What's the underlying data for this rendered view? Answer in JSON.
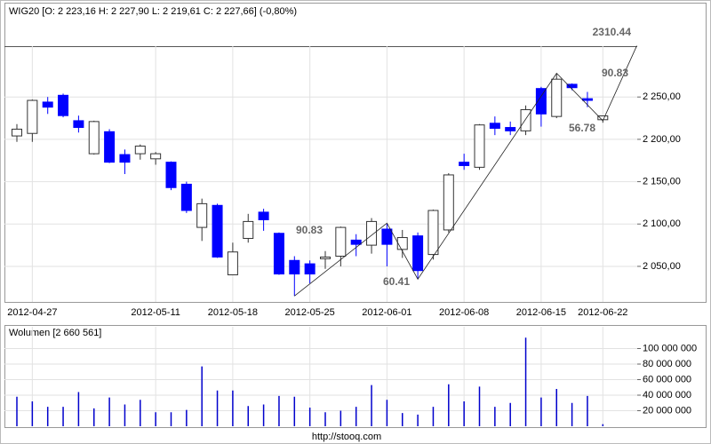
{
  "chart_data": [
    {
      "type": "candlestick",
      "title": "WIG20 [O: 2 223,16  H: 2 227,90  L: 2 219,61  C: 2 227,66] (-0,80%)",
      "categories": [
        null,
        "2012-04-27",
        null,
        null,
        null,
        null,
        null,
        null,
        null,
        "2012-05-11",
        null,
        null,
        null,
        null,
        "2012-05-18",
        null,
        null,
        null,
        null,
        "2012-05-25",
        null,
        null,
        null,
        null,
        "2012-06-01",
        null,
        null,
        null,
        null,
        "2012-06-08",
        null,
        null,
        null,
        null,
        "2012-06-15",
        null,
        null,
        null,
        "2012-06-22"
      ],
      "open": [
        2204,
        2207,
        2244,
        2252,
        2222,
        2183,
        2209,
        2182,
        2183,
        2177,
        2173,
        2147,
        2096,
        2122,
        2040,
        2083,
        2114,
        2089,
        2057,
        2053,
        2059,
        2062,
        2081,
        2075,
        2094,
        2070,
        2086,
        2064,
        2093,
        2173,
        2167,
        2219,
        2214,
        2210,
        2260,
        2227,
        2265,
        2248,
        2223.16
      ],
      "high": [
        2218,
        2247,
        2250,
        2254,
        2228,
        2222,
        2212,
        2188,
        2194,
        2185,
        2174,
        2150,
        2130,
        2124,
        2078,
        2112,
        2118,
        2090,
        2062,
        2057,
        2068,
        2097,
        2088,
        2107,
        2101,
        2093,
        2090,
        2117,
        2160,
        2183,
        2218,
        2227,
        2221,
        2240,
        2262,
        2278,
        2266,
        2256,
        2227.9
      ],
      "low": [
        2197,
        2197,
        2230,
        2226,
        2208,
        2182,
        2172,
        2159,
        2176,
        2170,
        2140,
        2113,
        2080,
        2060,
        2040,
        2078,
        2092,
        2040,
        2015,
        2030,
        2047,
        2050,
        2062,
        2065,
        2050,
        2060,
        2035,
        2058,
        2090,
        2164,
        2164,
        2205,
        2205,
        2205,
        2215,
        2225,
        2258,
        2238,
        2219.61
      ],
      "close": [
        2212,
        2246,
        2238,
        2228,
        2214,
        2221,
        2173,
        2173,
        2192,
        2183,
        2143,
        2116,
        2124,
        2061,
        2067,
        2103,
        2105,
        2041,
        2041,
        2041,
        2061,
        2096,
        2076,
        2103,
        2076,
        2084,
        2045,
        2116,
        2158,
        2169,
        2217,
        2213,
        2210,
        2235,
        2230,
        2271,
        2261,
        2246,
        2227.66
      ],
      "up_color": "#ffffff",
      "down_color": "#0000ff",
      "zigzag": {
        "x": [
          18,
          24,
          26,
          35,
          38,
          40.2
        ],
        "values": [
          2015,
          2101,
          2035,
          2278,
          2222,
          2310.44
        ]
      },
      "annotations": [
        "90.83",
        "60.41",
        "56.78",
        "90.83"
      ],
      "ylim": [
        2008,
        2310
      ],
      "yticks": [
        {
          "value": 2050,
          "label": "2 050,00"
        },
        {
          "value": 2100,
          "label": "2 100,00"
        },
        {
          "value": 2150,
          "label": "2 150,00"
        },
        {
          "value": 2200,
          "label": "2 200,00"
        },
        {
          "value": 2250,
          "label": "2 250,00"
        }
      ],
      "grid": true
    },
    {
      "type": "volume",
      "title": "Wolumen [2 660 561]",
      "values": [
        38000000,
        32000000,
        25000000,
        25000000,
        44000000,
        23000000,
        37000000,
        28000000,
        34000000,
        18000000,
        18000000,
        21000000,
        77000000,
        46000000,
        46000000,
        26000000,
        28000000,
        39000000,
        38000000,
        24000000,
        18000000,
        20000000,
        25000000,
        53000000,
        34000000,
        17000000,
        15000000,
        25000000,
        54000000,
        32000000,
        51000000,
        25000000,
        30000000,
        114000000,
        37000000,
        48000000,
        30000000,
        39000000,
        2660561
      ],
      "color": "#0000cc",
      "ylim": [
        0,
        128000000
      ],
      "yticks": [
        {
          "value": 20000000,
          "label": "20 000 000"
        },
        {
          "value": 40000000,
          "label": "40 000 000"
        },
        {
          "value": 60000000,
          "label": "60 000 000"
        },
        {
          "value": 80000000,
          "label": "80 000 000"
        },
        {
          "value": 100000000,
          "label": "100 000 000"
        }
      ],
      "grid": true
    }
  ],
  "footer": "http://stooq.com"
}
